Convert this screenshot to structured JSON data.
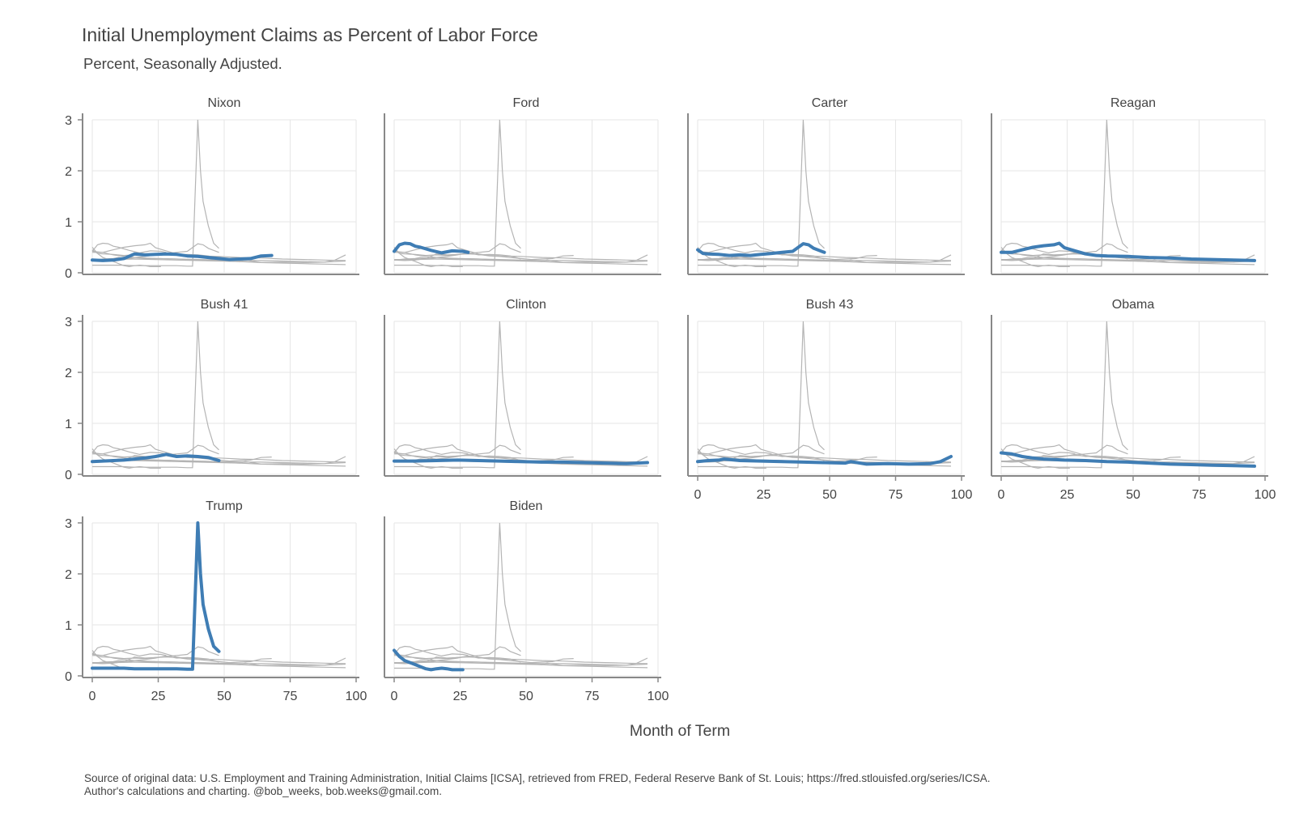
{
  "title": "Initial Unemployment Claims as Percent of Labor Force",
  "subtitle": "Percent, Seasonally Adjusted.",
  "source_line1": "Source of original data: U.S. Employment and Training Administration, Initial Claims [ICSA], retrieved from FRED, Federal Reserve Bank of St. Louis; https://fred.stlouisfed.org/series/ICSA.",
  "source_line2": "Author's calculations and charting. @bob_weeks, bob.weeks@gmail.com.",
  "colors": {
    "highlight": "#3f7db4",
    "background_series": "#b4b4b4",
    "grid": "#e6e6e6",
    "axis": "#888888"
  },
  "chart_data": {
    "type": "line",
    "facet_by": "president",
    "xlabel": "Month of Term",
    "ylabel": "",
    "xlim": [
      0,
      100
    ],
    "ylim": [
      0,
      3
    ],
    "x_ticks": [
      0,
      25,
      50,
      75,
      100
    ],
    "y_ticks": [
      0,
      1,
      2,
      3
    ],
    "grid": true,
    "series": [
      {
        "name": "Nixon",
        "x": [
          0,
          4,
          8,
          12,
          16,
          20,
          24,
          28,
          32,
          36,
          40,
          44,
          48,
          52,
          56,
          60,
          64,
          68
        ],
        "values": [
          0.25,
          0.24,
          0.25,
          0.28,
          0.37,
          0.35,
          0.36,
          0.37,
          0.36,
          0.33,
          0.32,
          0.3,
          0.28,
          0.26,
          0.27,
          0.28,
          0.33,
          0.34
        ]
      },
      {
        "name": "Ford",
        "x": [
          0,
          2,
          4,
          6,
          8,
          10,
          14,
          18,
          22,
          26,
          28
        ],
        "values": [
          0.42,
          0.55,
          0.58,
          0.57,
          0.52,
          0.5,
          0.44,
          0.39,
          0.43,
          0.42,
          0.4
        ]
      },
      {
        "name": "Carter",
        "x": [
          0,
          2,
          4,
          8,
          12,
          16,
          20,
          24,
          28,
          32,
          36,
          40,
          42,
          44,
          48
        ],
        "values": [
          0.45,
          0.38,
          0.37,
          0.36,
          0.34,
          0.35,
          0.34,
          0.36,
          0.38,
          0.4,
          0.42,
          0.57,
          0.55,
          0.48,
          0.4
        ]
      },
      {
        "name": "Reagan",
        "x": [
          0,
          4,
          8,
          12,
          16,
          20,
          22,
          24,
          28,
          32,
          36,
          40,
          48,
          56,
          64,
          72,
          80,
          88,
          96
        ],
        "values": [
          0.4,
          0.4,
          0.45,
          0.5,
          0.53,
          0.55,
          0.58,
          0.49,
          0.43,
          0.37,
          0.34,
          0.33,
          0.32,
          0.3,
          0.29,
          0.27,
          0.26,
          0.25,
          0.24
        ]
      },
      {
        "name": "Bush 41",
        "x": [
          0,
          4,
          8,
          12,
          16,
          20,
          24,
          28,
          32,
          36,
          40,
          44,
          48
        ],
        "values": [
          0.25,
          0.26,
          0.27,
          0.28,
          0.3,
          0.32,
          0.35,
          0.39,
          0.35,
          0.36,
          0.35,
          0.33,
          0.27
        ]
      },
      {
        "name": "Clinton",
        "x": [
          0,
          8,
          16,
          24,
          32,
          40,
          48,
          56,
          64,
          72,
          80,
          88,
          96
        ],
        "values": [
          0.26,
          0.26,
          0.27,
          0.28,
          0.27,
          0.26,
          0.25,
          0.24,
          0.24,
          0.23,
          0.22,
          0.21,
          0.23
        ]
      },
      {
        "name": "Bush 43",
        "x": [
          0,
          4,
          8,
          10,
          16,
          24,
          32,
          40,
          48,
          56,
          58,
          64,
          72,
          80,
          88,
          92,
          96
        ],
        "values": [
          0.25,
          0.27,
          0.28,
          0.3,
          0.27,
          0.26,
          0.25,
          0.24,
          0.23,
          0.22,
          0.25,
          0.2,
          0.21,
          0.2,
          0.21,
          0.25,
          0.35
        ]
      },
      {
        "name": "Obama",
        "x": [
          0,
          4,
          8,
          12,
          16,
          24,
          32,
          40,
          48,
          56,
          64,
          72,
          80,
          88,
          96
        ],
        "values": [
          0.42,
          0.4,
          0.35,
          0.32,
          0.3,
          0.28,
          0.27,
          0.25,
          0.24,
          0.22,
          0.2,
          0.19,
          0.18,
          0.17,
          0.16
        ]
      },
      {
        "name": "Trump",
        "x": [
          0,
          4,
          8,
          12,
          16,
          20,
          24,
          28,
          32,
          36,
          38,
          40,
          41,
          42,
          44,
          46,
          48
        ],
        "values": [
          0.15,
          0.15,
          0.15,
          0.15,
          0.14,
          0.14,
          0.14,
          0.14,
          0.14,
          0.13,
          0.13,
          3.0,
          2.0,
          1.4,
          0.92,
          0.58,
          0.48
        ]
      },
      {
        "name": "Biden",
        "x": [
          0,
          2,
          4,
          6,
          8,
          10,
          12,
          14,
          16,
          18,
          20,
          22,
          24,
          26
        ],
        "values": [
          0.5,
          0.38,
          0.3,
          0.26,
          0.22,
          0.18,
          0.14,
          0.12,
          0.14,
          0.15,
          0.14,
          0.12,
          0.12,
          0.12
        ]
      }
    ]
  }
}
